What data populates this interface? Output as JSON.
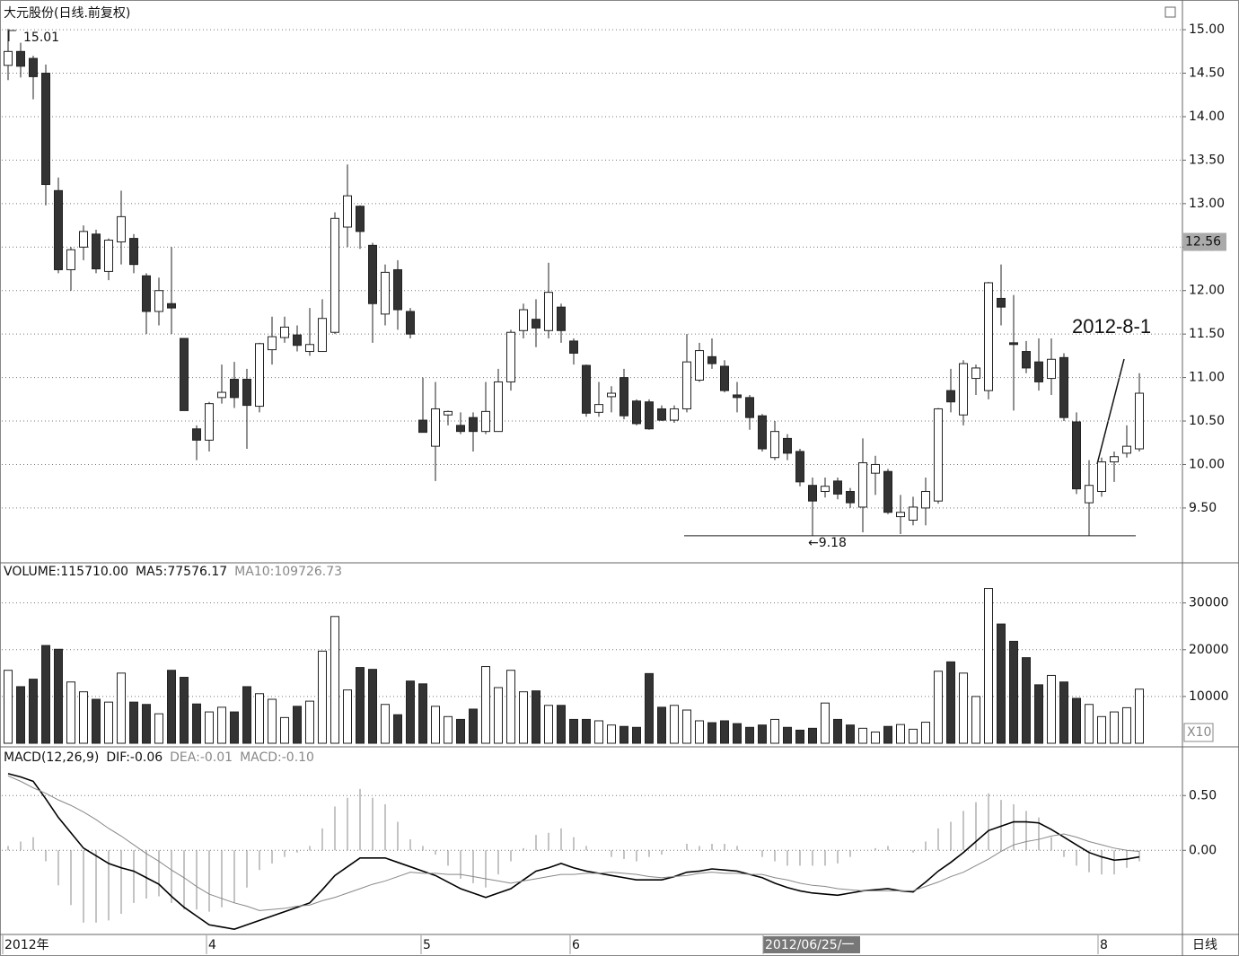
{
  "chart_data": [
    {
      "type": "candlestick",
      "title": "大元股份(日线.前复权)",
      "open": [
        14.59,
        14.75,
        14.67,
        14.5,
        13.15,
        12.24,
        12.5,
        12.65,
        12.22,
        12.56,
        12.6,
        12.17,
        11.76,
        11.85,
        11.45,
        10.41,
        10.28,
        10.77,
        10.98,
        10.98,
        10.67,
        11.32,
        11.46,
        11.49,
        11.3,
        11.3,
        11.52,
        12.73,
        12.97,
        12.52,
        11.73,
        12.24,
        11.76,
        10.51,
        10.21,
        10.57,
        10.45,
        10.54,
        10.38,
        10.38,
        10.95,
        11.54,
        11.67,
        11.54,
        11.81,
        11.42,
        11.14,
        10.6,
        10.78,
        11.0,
        10.73,
        10.72,
        10.64,
        10.51,
        10.64,
        10.97,
        11.24,
        11.13,
        10.8,
        10.77,
        10.56,
        10.08,
        10.3,
        10.15,
        9.76,
        9.69,
        9.81,
        9.69,
        9.51,
        9.9,
        9.92,
        9.4,
        9.36,
        9.5,
        9.58,
        10.85,
        10.57,
        10.99,
        10.85,
        11.91,
        11.4,
        11.3,
        11.18,
        10.99,
        11.23,
        10.49,
        9.56,
        9.69,
        10.03,
        10.13,
        10.18
      ],
      "high": [
        15.01,
        14.85,
        14.7,
        14.6,
        13.3,
        12.5,
        12.75,
        12.7,
        12.6,
        13.15,
        12.65,
        12.2,
        12.15,
        12.5,
        11.45,
        10.45,
        10.72,
        11.15,
        11.18,
        11.1,
        11.4,
        11.7,
        11.7,
        11.6,
        11.8,
        11.9,
        12.9,
        13.45,
        12.98,
        12.55,
        12.3,
        12.35,
        11.8,
        11.0,
        10.95,
        10.62,
        10.6,
        10.6,
        10.95,
        11.1,
        11.55,
        11.85,
        11.9,
        12.32,
        11.85,
        11.45,
        11.15,
        10.95,
        10.9,
        11.1,
        10.75,
        10.75,
        10.68,
        10.68,
        11.5,
        11.4,
        11.45,
        11.2,
        10.95,
        10.8,
        10.58,
        10.5,
        10.35,
        10.18,
        9.85,
        9.85,
        9.85,
        9.73,
        10.3,
        10.1,
        9.95,
        9.65,
        9.63,
        9.85,
        10.65,
        11.1,
        11.2,
        11.15,
        12.1,
        12.3,
        11.95,
        11.42,
        11.45,
        11.45,
        11.28,
        10.6,
        10.05,
        10.08,
        10.15,
        10.45,
        11.05
      ],
      "low": [
        14.42,
        14.45,
        14.2,
        12.98,
        12.2,
        12.0,
        12.35,
        12.2,
        12.12,
        12.3,
        12.2,
        11.5,
        11.6,
        11.5,
        10.62,
        10.05,
        10.15,
        10.7,
        10.65,
        10.18,
        10.6,
        11.15,
        11.4,
        11.3,
        11.25,
        11.3,
        11.5,
        12.5,
        12.48,
        11.4,
        11.6,
        11.55,
        11.45,
        10.37,
        9.81,
        10.45,
        10.35,
        10.15,
        10.35,
        10.38,
        10.85,
        11.45,
        11.35,
        11.45,
        11.4,
        11.15,
        10.55,
        10.55,
        10.6,
        10.52,
        10.45,
        10.4,
        10.5,
        10.48,
        10.6,
        10.95,
        11.1,
        10.83,
        10.6,
        10.4,
        10.15,
        10.05,
        10.05,
        9.75,
        9.18,
        9.62,
        9.6,
        9.5,
        9.22,
        9.65,
        9.43,
        9.2,
        9.3,
        9.3,
        9.55,
        10.6,
        10.45,
        10.8,
        10.75,
        11.6,
        10.62,
        11.05,
        10.85,
        10.8,
        10.5,
        9.66,
        9.18,
        9.63,
        9.8,
        10.08,
        10.15
      ],
      "close": [
        14.75,
        14.58,
        14.46,
        13.22,
        12.24,
        12.47,
        12.68,
        12.25,
        12.58,
        12.85,
        12.3,
        11.76,
        12.0,
        11.8,
        10.62,
        10.28,
        10.7,
        10.83,
        10.77,
        10.68,
        11.39,
        11.47,
        11.58,
        11.37,
        11.38,
        11.68,
        12.83,
        13.09,
        12.68,
        11.85,
        12.21,
        11.78,
        11.5,
        10.37,
        10.64,
        10.61,
        10.38,
        10.38,
        10.61,
        10.95,
        11.52,
        11.78,
        11.57,
        11.98,
        11.54,
        11.28,
        10.59,
        10.69,
        10.82,
        10.56,
        10.47,
        10.41,
        10.51,
        10.64,
        11.18,
        11.31,
        11.16,
        10.85,
        10.77,
        10.54,
        10.18,
        10.38,
        10.13,
        9.8,
        9.58,
        9.75,
        9.66,
        9.56,
        10.02,
        10.0,
        9.45,
        9.45,
        9.51,
        9.69,
        10.64,
        10.72,
        11.16,
        11.11,
        12.09,
        11.81,
        11.38,
        11.11,
        10.95,
        11.21,
        10.54,
        9.72,
        9.76,
        10.03,
        10.09,
        10.21,
        10.82
      ],
      "up_color": "#ffffff",
      "down_color": "#333333",
      "ylim": [
        8.89,
        15.29
      ],
      "yticks": [
        {
          "value": 9.5,
          "label": "9.50"
        },
        {
          "value": 10,
          "label": "10.00"
        },
        {
          "value": 10.5,
          "label": "10.50"
        },
        {
          "value": 11,
          "label": "11.00"
        },
        {
          "value": 11.5,
          "label": "11.50"
        },
        {
          "value": 12,
          "label": "12.00"
        },
        {
          "value": 12.5,
          "label": "12.50"
        },
        {
          "value": 13,
          "label": "13.00"
        },
        {
          "value": 13.5,
          "label": "13.50"
        },
        {
          "value": 14,
          "label": "14.00"
        },
        {
          "value": 14.5,
          "label": "14.50"
        },
        {
          "value": 15,
          "label": "15.00"
        }
      ],
      "grid": true,
      "high_marker": 15.01,
      "low_marker": {
        "value": 9.18,
        "label": "←9.18"
      },
      "current_price": 12.56,
      "annotation": "2012-8-1",
      "x_labels": [
        "2012年",
        "4",
        "5",
        "6",
        "2012/06/25/一",
        "8"
      ],
      "period": "日线"
    },
    {
      "type": "bar",
      "series": [
        {
          "name": "VOLUME:115710.00",
          "values": [
            15600,
            12100,
            13700,
            20900,
            20100,
            13100,
            11000,
            9400,
            8800,
            15000,
            8800,
            8300,
            6300,
            15600,
            14100,
            8400,
            6700,
            7700,
            6700,
            12100,
            10600,
            9400,
            5500,
            7900,
            9000,
            19700,
            27100,
            11400,
            16200,
            15800,
            8300,
            6100,
            13300,
            12700,
            7900,
            5700,
            5100,
            7300,
            16400,
            11900,
            15600,
            11000,
            11200,
            8100,
            8100,
            5100,
            5100,
            4800,
            3900,
            3600,
            3400,
            14900,
            7700,
            8100,
            7100,
            4800,
            4400,
            4800,
            4200,
            3400,
            3900,
            5100,
            3400,
            2800,
            3200,
            8600,
            5100,
            3900,
            3200,
            2400,
            3600,
            4000,
            3000,
            4500,
            15400,
            17400,
            15000,
            10000,
            33100,
            25500,
            21800,
            18300,
            12500,
            14500,
            13100,
            9600,
            8300,
            5700,
            6700,
            7600,
            11571
          ]
        }
      ],
      "indicator_labels": [
        "MA5:77576.17",
        "MA10:109726.73"
      ],
      "ylim": [
        0,
        38000
      ],
      "yticks": [
        10000,
        20000,
        30000
      ],
      "grid": true,
      "unit_label": "X10"
    },
    {
      "type": "macd",
      "title": "MACD(12,26,9)",
      "series": [
        {
          "name": "DIF:-0.06",
          "color": "#000000",
          "values": [
            0.7,
            0.67,
            0.63,
            0.47,
            0.3,
            0.16,
            0.02,
            -0.05,
            -0.12,
            -0.16,
            -0.19,
            -0.25,
            -0.31,
            -0.42,
            -0.52,
            -0.6,
            -0.68,
            -0.7,
            -0.72,
            -0.68,
            -0.64,
            -0.6,
            -0.56,
            -0.52,
            -0.48,
            -0.36,
            -0.23,
            -0.15,
            -0.07,
            -0.07,
            -0.07,
            -0.11,
            -0.15,
            -0.19,
            -0.23,
            -0.29,
            -0.35,
            -0.39,
            -0.43,
            -0.39,
            -0.35,
            -0.27,
            -0.19,
            -0.16,
            -0.12,
            -0.16,
            -0.19,
            -0.21,
            -0.23,
            -0.25,
            -0.27,
            -0.27,
            -0.27,
            -0.24,
            -0.2,
            -0.19,
            -0.17,
            -0.18,
            -0.19,
            -0.22,
            -0.25,
            -0.3,
            -0.34,
            -0.37,
            -0.39,
            -0.4,
            -0.41,
            -0.39,
            -0.37,
            -0.36,
            -0.35,
            -0.37,
            -0.38,
            -0.29,
            -0.19,
            -0.11,
            -0.02,
            0.08,
            0.18,
            0.22,
            0.26,
            0.26,
            0.25,
            0.19,
            0.12,
            0.05,
            -0.02,
            -0.06,
            -0.09,
            -0.08,
            -0.06
          ]
        },
        {
          "name": "DEA:-0.01",
          "color": "#888888",
          "values": [
            0.68,
            0.63,
            0.57,
            0.52,
            0.46,
            0.41,
            0.35,
            0.28,
            0.2,
            0.13,
            0.05,
            -0.03,
            -0.1,
            -0.18,
            -0.25,
            -0.33,
            -0.4,
            -0.44,
            -0.48,
            -0.51,
            -0.55,
            -0.54,
            -0.53,
            -0.51,
            -0.5,
            -0.46,
            -0.43,
            -0.39,
            -0.35,
            -0.31,
            -0.28,
            -0.24,
            -0.2,
            -0.21,
            -0.21,
            -0.22,
            -0.22,
            -0.24,
            -0.26,
            -0.28,
            -0.3,
            -0.28,
            -0.26,
            -0.24,
            -0.22,
            -0.22,
            -0.21,
            -0.21,
            -0.2,
            -0.21,
            -0.22,
            -0.24,
            -0.25,
            -0.24,
            -0.23,
            -0.21,
            -0.2,
            -0.21,
            -0.21,
            -0.22,
            -0.22,
            -0.25,
            -0.27,
            -0.3,
            -0.32,
            -0.33,
            -0.35,
            -0.36,
            -0.37,
            -0.37,
            -0.37,
            -0.37,
            -0.37,
            -0.33,
            -0.29,
            -0.24,
            -0.2,
            -0.14,
            -0.08,
            -0.01,
            0.05,
            0.08,
            0.1,
            0.13,
            0.15,
            0.12,
            0.08,
            0.05,
            0.02,
            0.0,
            -0.01
          ]
        },
        {
          "name": "MACD:-0.10",
          "color": "#888888",
          "values": [
            0.04,
            0.08,
            0.12,
            -0.1,
            -0.32,
            -0.5,
            -0.66,
            -0.66,
            -0.64,
            -0.58,
            -0.48,
            -0.44,
            -0.42,
            -0.48,
            -0.54,
            -0.54,
            -0.56,
            -0.52,
            -0.48,
            -0.34,
            -0.18,
            -0.12,
            -0.06,
            -0.02,
            0.04,
            0.2,
            0.4,
            0.48,
            0.56,
            0.48,
            0.42,
            0.26,
            0.1,
            0.04,
            -0.04,
            -0.14,
            -0.26,
            -0.3,
            -0.34,
            -0.22,
            -0.1,
            0.02,
            0.14,
            0.16,
            0.2,
            0.12,
            0.04,
            0.0,
            -0.06,
            -0.08,
            -0.1,
            -0.06,
            -0.04,
            0.0,
            0.06,
            0.04,
            0.06,
            0.06,
            0.04,
            0.0,
            -0.06,
            -0.1,
            -0.14,
            -0.14,
            -0.14,
            -0.14,
            -0.12,
            -0.06,
            0.0,
            0.02,
            0.04,
            0.0,
            -0.02,
            0.08,
            0.2,
            0.26,
            0.36,
            0.44,
            0.52,
            0.46,
            0.42,
            0.36,
            0.3,
            0.12,
            -0.06,
            -0.14,
            -0.2,
            -0.22,
            -0.22,
            -0.16,
            -0.1
          ]
        }
      ],
      "ylim": [
        -0.76,
        0.92
      ],
      "yticks": [
        {
          "value": 0,
          "label": "0.00"
        },
        {
          "value": 0.5,
          "label": "0.50"
        }
      ],
      "grid": true
    }
  ]
}
